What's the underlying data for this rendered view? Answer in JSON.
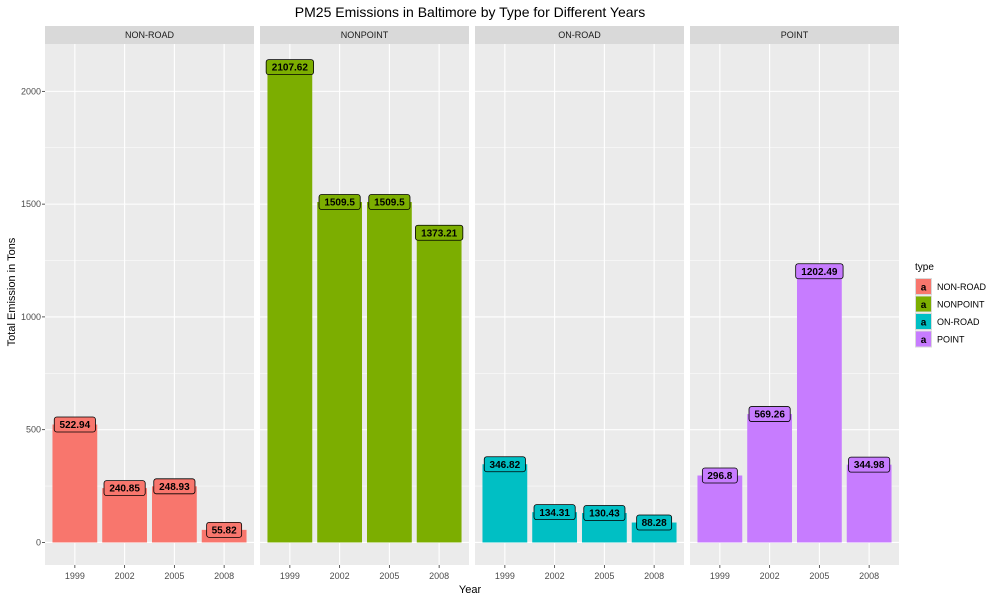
{
  "chart_data": {
    "type": "bar",
    "title": "PM25 Emissions in Baltimore by Type for Different Years",
    "xlabel": "Year",
    "ylabel": "Total Emission in Tons",
    "categories": [
      "1999",
      "2002",
      "2005",
      "2008"
    ],
    "y_ticks": [
      0,
      500,
      1000,
      1500,
      2000
    ],
    "ylim": [
      -100,
      2210
    ],
    "grid": true,
    "facets": [
      {
        "name": "NON-ROAD",
        "color": "#F8766D",
        "values": [
          522.94,
          240.85,
          248.93,
          55.82
        ],
        "labels": [
          "522.94",
          "240.85",
          "248.93",
          "55.82"
        ]
      },
      {
        "name": "NONPOINT",
        "color": "#7CAE00",
        "values": [
          2107.62,
          1509.5,
          1509.5,
          1373.21
        ],
        "labels": [
          "2107.62",
          "1509.5",
          "1509.5",
          "1373.21"
        ]
      },
      {
        "name": "ON-ROAD",
        "color": "#00BFC4",
        "values": [
          346.82,
          134.31,
          130.43,
          88.28
        ],
        "labels": [
          "346.82",
          "134.31",
          "130.43",
          "88.28"
        ]
      },
      {
        "name": "POINT",
        "color": "#C77CFF",
        "values": [
          296.8,
          569.26,
          1202.49,
          344.98
        ],
        "labels": [
          "296.8",
          "569.26",
          "1202.49",
          "344.98"
        ]
      }
    ],
    "legend": {
      "title": "type",
      "placement": "right",
      "key_glyph": "a",
      "items": [
        "NON-ROAD",
        "NONPOINT",
        "ON-ROAD",
        "POINT"
      ]
    },
    "colors": {
      "panel_bg": "#EBEBEB",
      "strip_bg": "#D9D9D9",
      "grid_major": "#FFFFFF",
      "tick_text": "#4D4D4D"
    }
  }
}
